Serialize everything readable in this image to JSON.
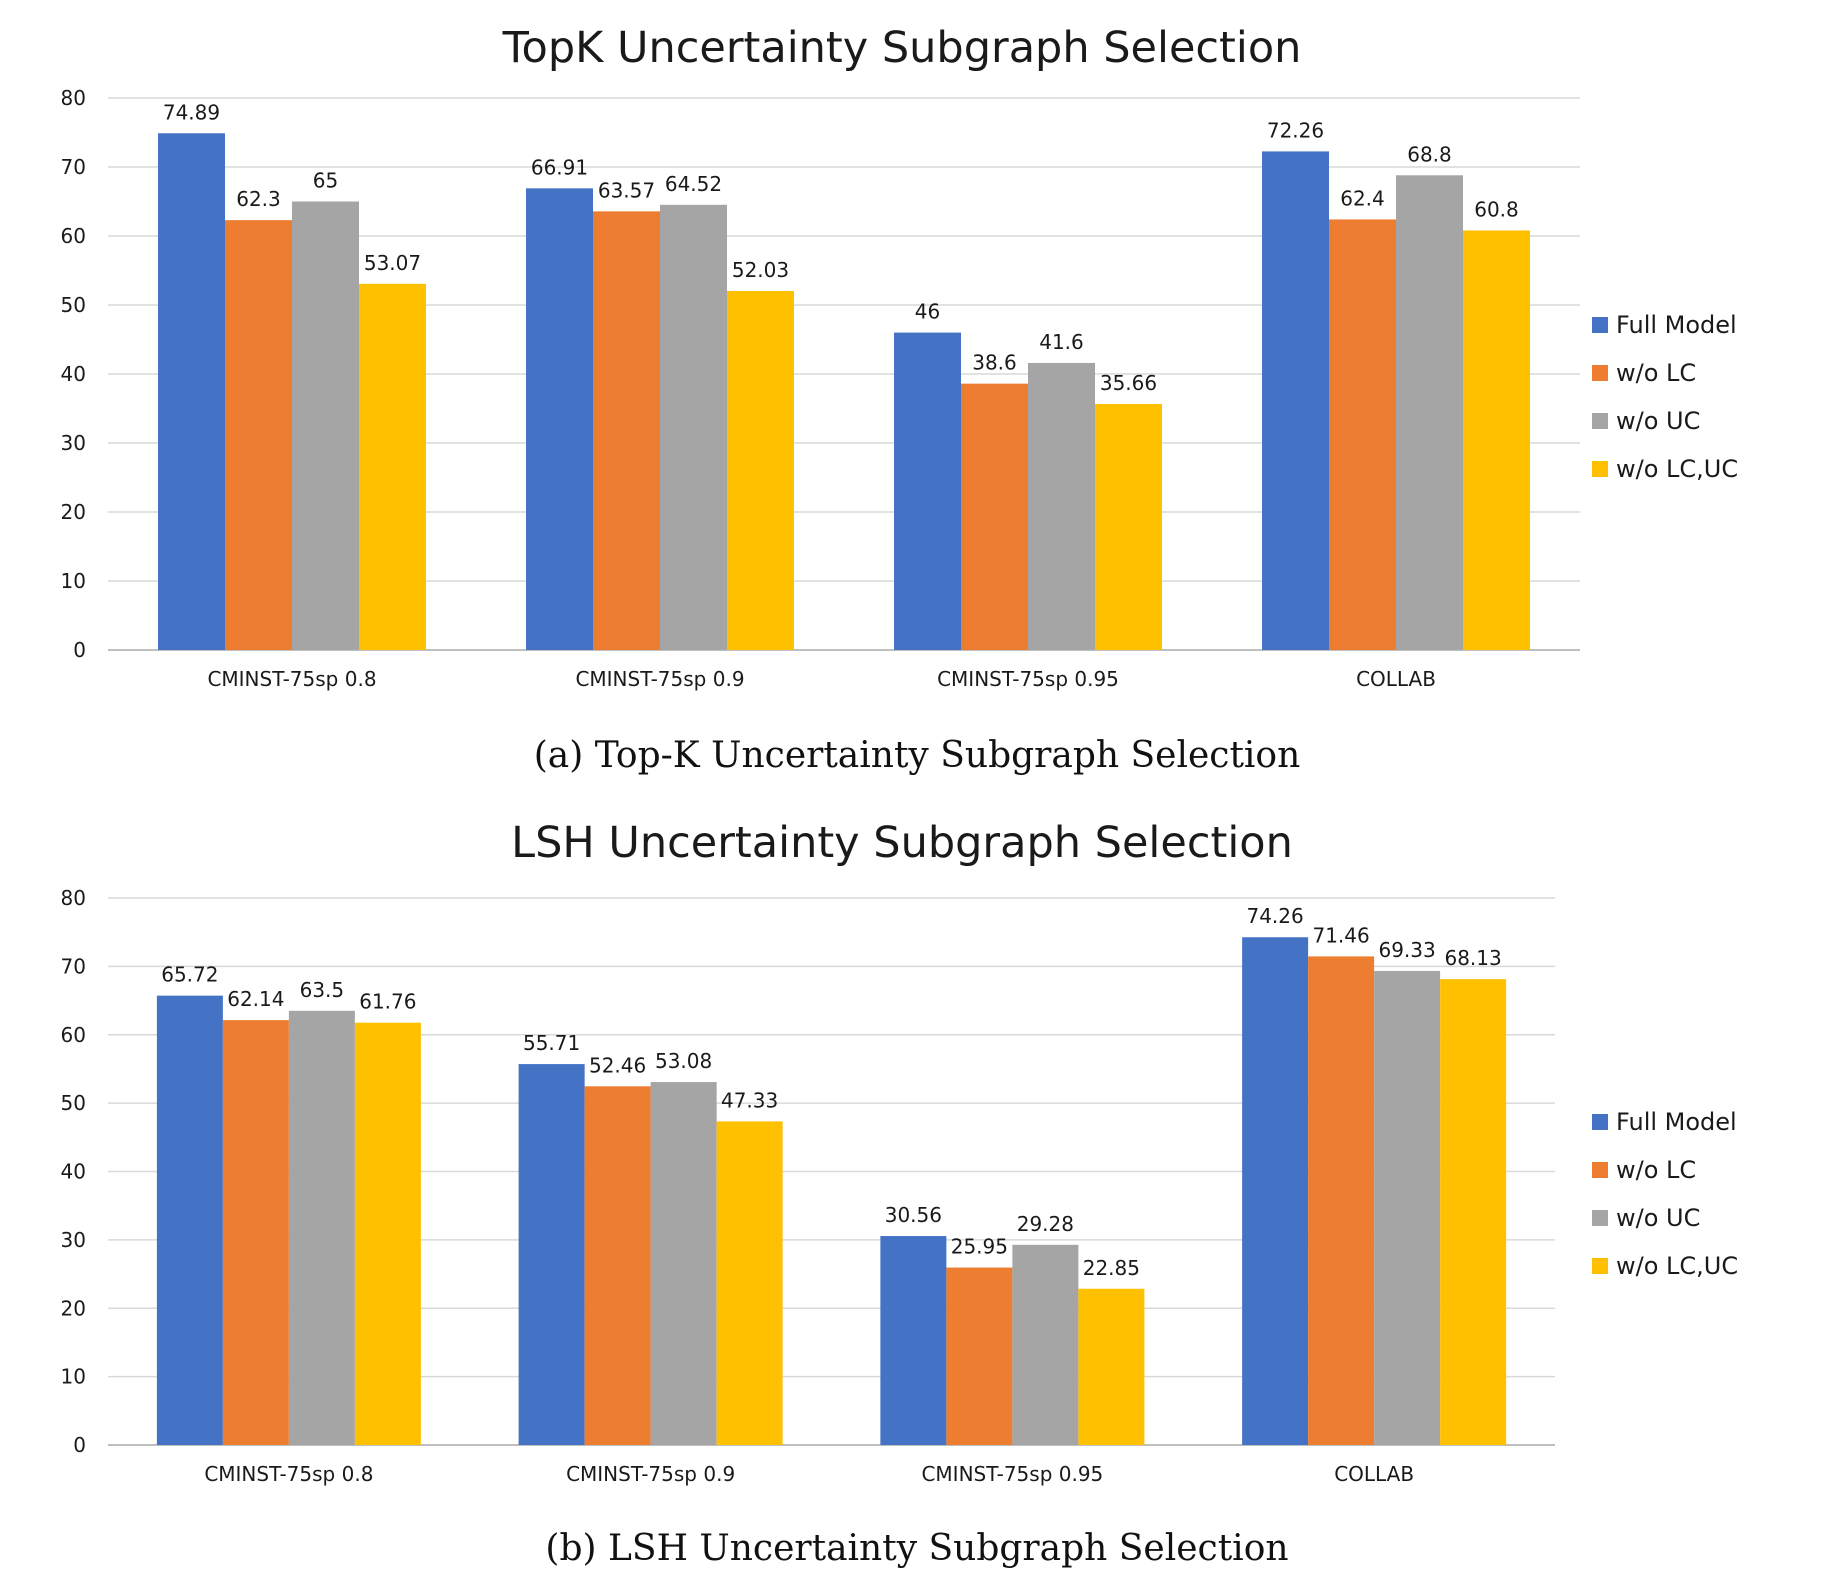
{
  "colors": {
    "series": [
      "#4472C4",
      "#ED7D31",
      "#A5A5A5",
      "#FFC000"
    ]
  },
  "chart_data": [
    {
      "type": "bar",
      "title": "TopK Uncertainty Subgraph Selection",
      "caption": "(a) Top-K Uncertainty Subgraph Selection",
      "categories": [
        "CMINST-75sp 0.8",
        "CMINST-75sp 0.9",
        "CMINST-75sp 0.95",
        "COLLAB"
      ],
      "series": [
        {
          "name": "Full Model",
          "values": [
            74.89,
            66.91,
            46,
            72.26
          ],
          "labels": [
            "74.89",
            "66.91",
            "46",
            "72.26"
          ]
        },
        {
          "name": "w/o LC",
          "values": [
            62.3,
            63.57,
            38.6,
            62.4
          ],
          "labels": [
            "62.3",
            "63.57",
            "38.6",
            "62.4"
          ]
        },
        {
          "name": "w/o UC",
          "values": [
            65,
            64.52,
            41.6,
            68.8
          ],
          "labels": [
            "65",
            "64.52",
            "41.6",
            "68.8"
          ]
        },
        {
          "name": "w/o LC,UC",
          "values": [
            53.07,
            52.03,
            35.66,
            60.8
          ],
          "labels": [
            "53.07",
            "52.03",
            "35.66",
            "60.8"
          ]
        }
      ],
      "yticks": [
        "0",
        "10",
        "20",
        "30",
        "40",
        "50",
        "60",
        "70",
        "80"
      ],
      "ylim": [
        0,
        80
      ],
      "grid": true,
      "legend": "right"
    },
    {
      "type": "bar",
      "title": "LSH Uncertainty Subgraph Selection",
      "caption": "(b) LSH Uncertainty Subgraph Selection",
      "categories": [
        "CMINST-75sp 0.8",
        "CMINST-75sp 0.9",
        "CMINST-75sp 0.95",
        "COLLAB"
      ],
      "series": [
        {
          "name": "Full Model",
          "values": [
            65.72,
            55.71,
            30.56,
            74.26
          ],
          "labels": [
            "65.72",
            "55.71",
            "30.56",
            "74.26"
          ]
        },
        {
          "name": "w/o LC",
          "values": [
            62.14,
            52.46,
            25.95,
            71.46
          ],
          "labels": [
            "62.14",
            "52.46",
            "25.95",
            "71.46"
          ]
        },
        {
          "name": "w/o UC",
          "values": [
            63.5,
            53.08,
            29.28,
            69.33
          ],
          "labels": [
            "63.5",
            "53.08",
            "29.28",
            "69.33"
          ]
        },
        {
          "name": "w/o LC,UC",
          "values": [
            61.76,
            47.33,
            22.85,
            68.13
          ],
          "labels": [
            "61.76",
            "47.33",
            "22.85",
            "68.13"
          ]
        }
      ],
      "yticks": [
        "0",
        "10",
        "20",
        "30",
        "40",
        "50",
        "60",
        "70",
        "80"
      ],
      "ylim": [
        0,
        80
      ],
      "grid": true,
      "legend": "right"
    }
  ]
}
